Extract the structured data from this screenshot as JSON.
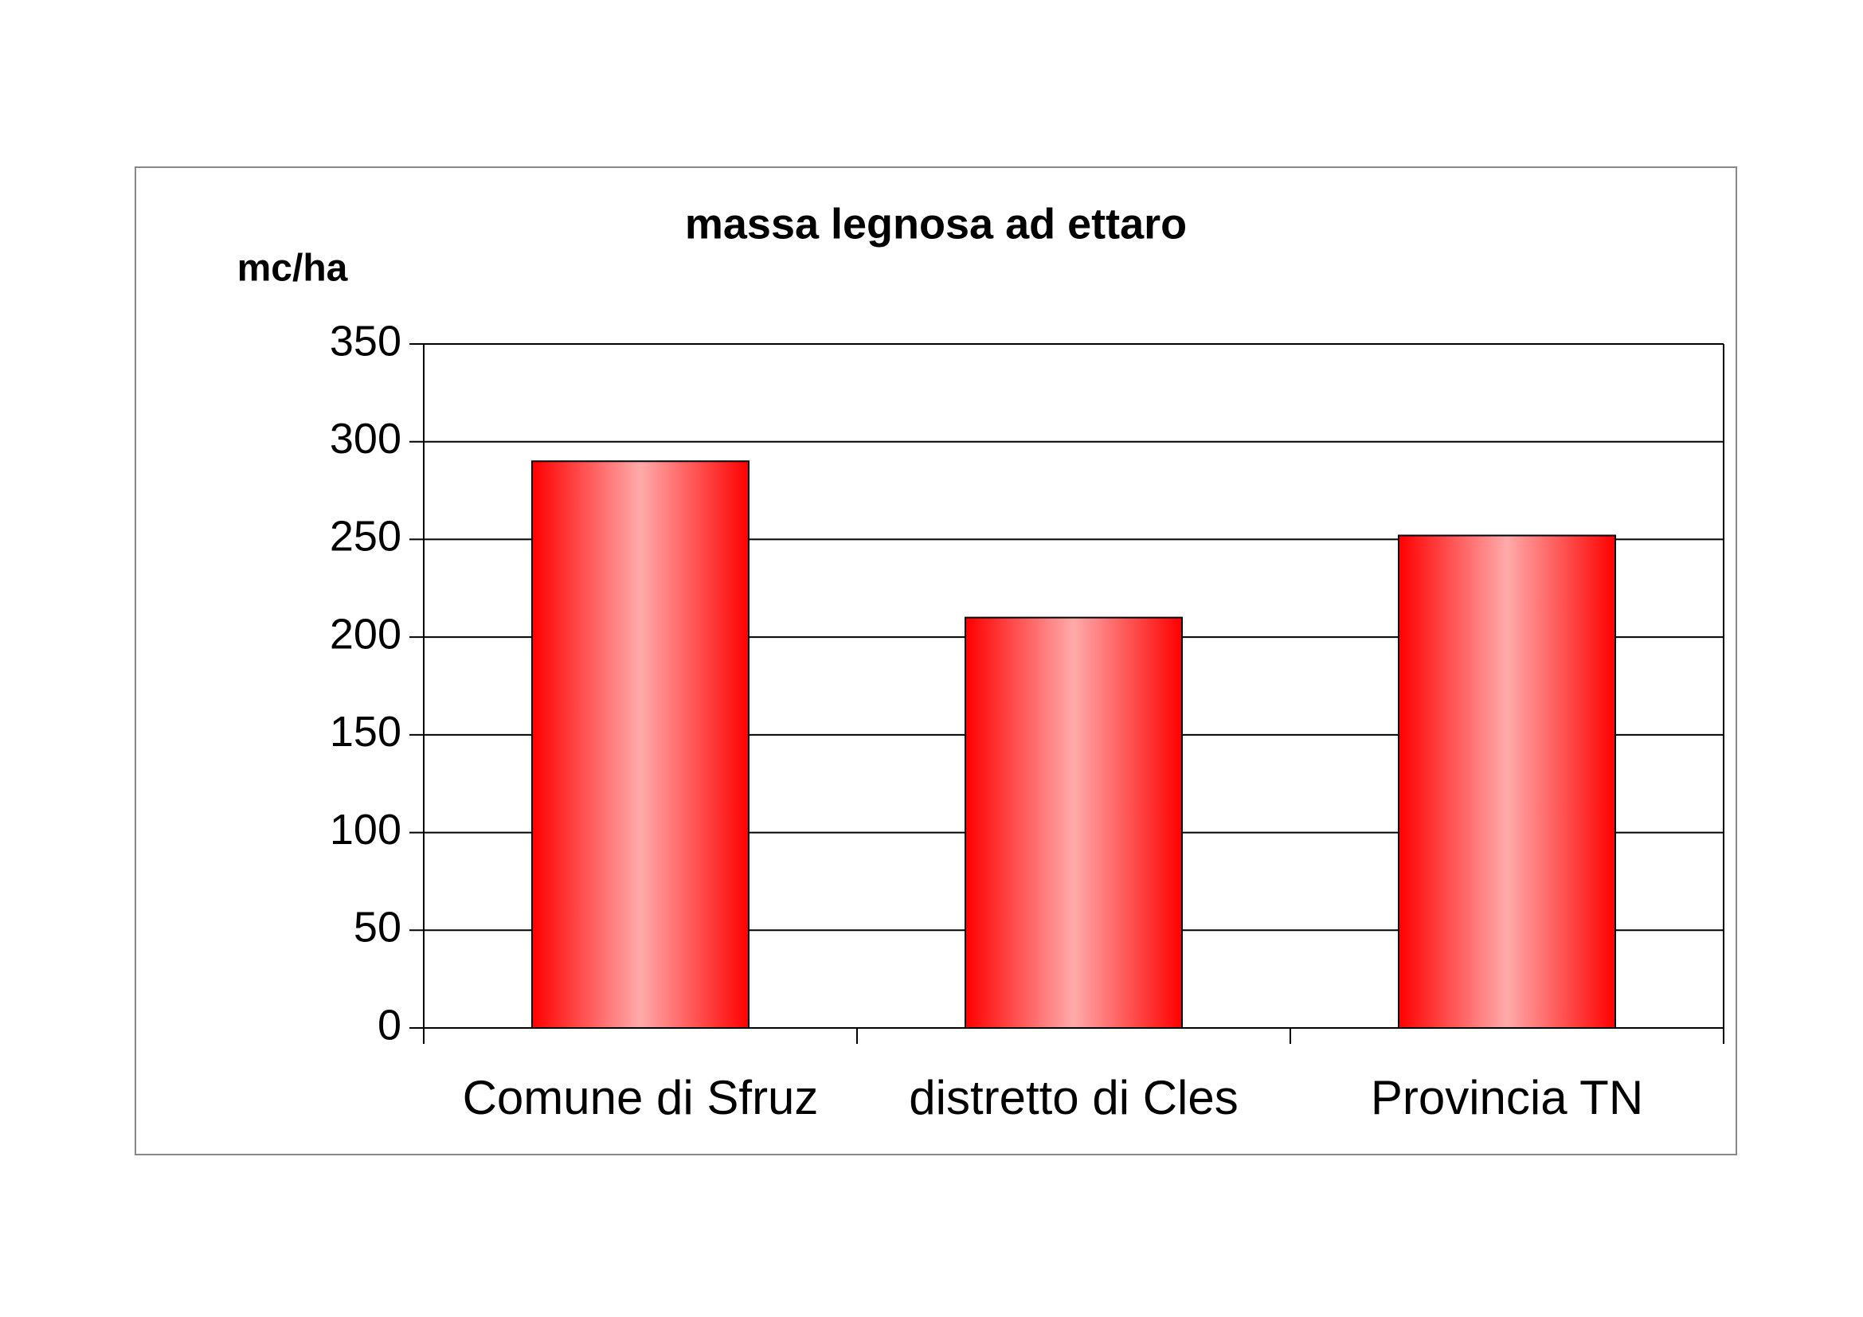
{
  "chart_data": {
    "type": "bar",
    "title": "massa legnosa ad ettaro",
    "y_label": "mc/ha",
    "categories": [
      "Comune di Sfruz",
      "distretto di Cles",
      "Provincia TN"
    ],
    "values": [
      290,
      210,
      252
    ],
    "color": "#ff0000",
    "ylim": [
      0,
      350
    ],
    "yticks": [
      0,
      50,
      100,
      150,
      200,
      250,
      300,
      350
    ],
    "grid": true
  }
}
